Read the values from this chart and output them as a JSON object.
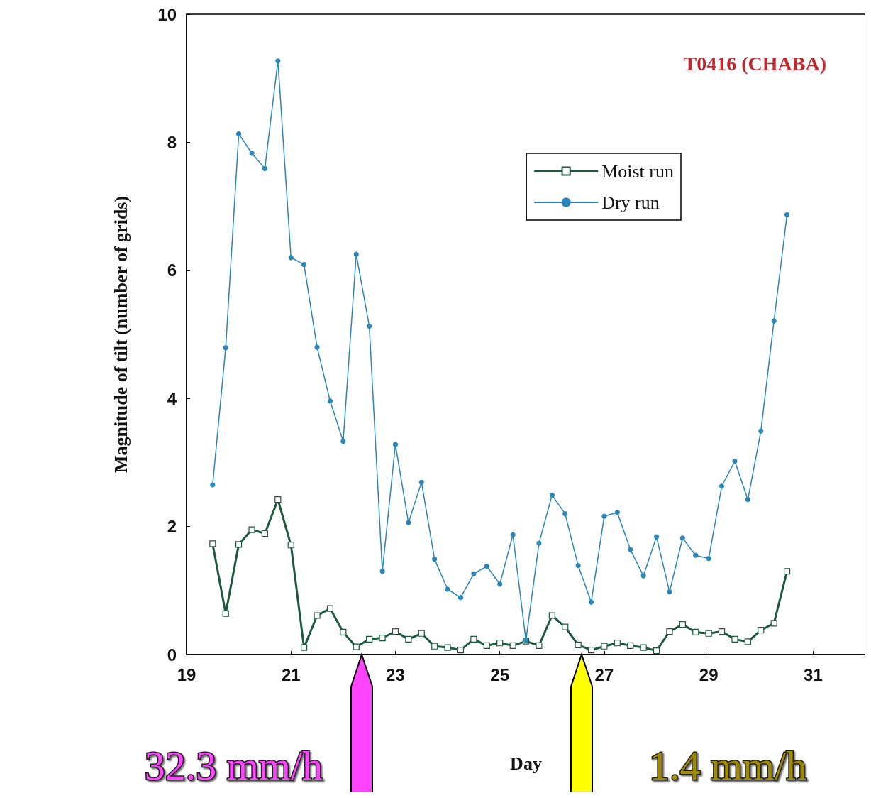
{
  "chart_data": {
    "type": "line",
    "title": "T0416 (CHABA)",
    "xlabel": "Day",
    "ylabel": "Magnitude of tilt (number of grids)",
    "x": [
      19.5,
      19.75,
      20,
      20.25,
      20.5,
      20.75,
      21,
      21.25,
      21.5,
      21.75,
      22,
      22.25,
      22.5,
      22.75,
      23,
      23.25,
      23.5,
      23.75,
      24,
      24.25,
      24.5,
      24.75,
      25,
      25.25,
      25.5,
      25.75,
      26,
      26.25,
      26.5,
      26.75,
      27,
      27.25,
      27.5,
      27.75,
      28,
      28.25,
      28.5,
      28.75,
      29,
      29.25,
      29.5,
      29.75,
      30,
      30.25,
      30.5
    ],
    "series": [
      {
        "name": "Moist run",
        "color": "#1d5a3c",
        "marker": "square",
        "values": [
          1.73,
          0.64,
          1.72,
          1.95,
          1.89,
          2.42,
          1.71,
          0.11,
          0.61,
          0.72,
          0.35,
          0.12,
          0.24,
          0.26,
          0.36,
          0.24,
          0.33,
          0.13,
          0.11,
          0.07,
          0.24,
          0.14,
          0.18,
          0.14,
          0.21,
          0.14,
          0.61,
          0.43,
          0.15,
          0.07,
          0.13,
          0.18,
          0.14,
          0.11,
          0.06,
          0.36,
          0.47,
          0.35,
          0.33,
          0.36,
          0.24,
          0.2,
          0.38,
          0.49,
          1.3
        ]
      },
      {
        "name": "Dry run",
        "color": "#2b86b8",
        "marker": "circle",
        "values": [
          2.65,
          4.79,
          8.13,
          7.83,
          7.59,
          9.27,
          6.2,
          6.09,
          4.8,
          3.96,
          3.33,
          6.25,
          5.13,
          1.3,
          3.28,
          2.06,
          2.69,
          1.49,
          1.02,
          0.89,
          1.26,
          1.38,
          1.1,
          1.87,
          0.22,
          1.74,
          2.49,
          2.2,
          1.39,
          0.82,
          2.16,
          2.22,
          1.64,
          1.23,
          1.84,
          0.98,
          1.82,
          1.55,
          1.5,
          2.63,
          3.02,
          2.42,
          3.49,
          5.21,
          6.87
        ]
      }
    ],
    "xlim": [
      19,
      32
    ],
    "xticks": [
      19,
      21,
      23,
      25,
      27,
      29,
      31
    ],
    "ylim": [
      0,
      10
    ],
    "yticks": [
      0,
      2,
      4,
      6,
      8,
      10
    ],
    "legend": "top right",
    "grid": false,
    "annotations": [
      "32.3 mm/h",
      "1.4 mm/h"
    ]
  }
}
